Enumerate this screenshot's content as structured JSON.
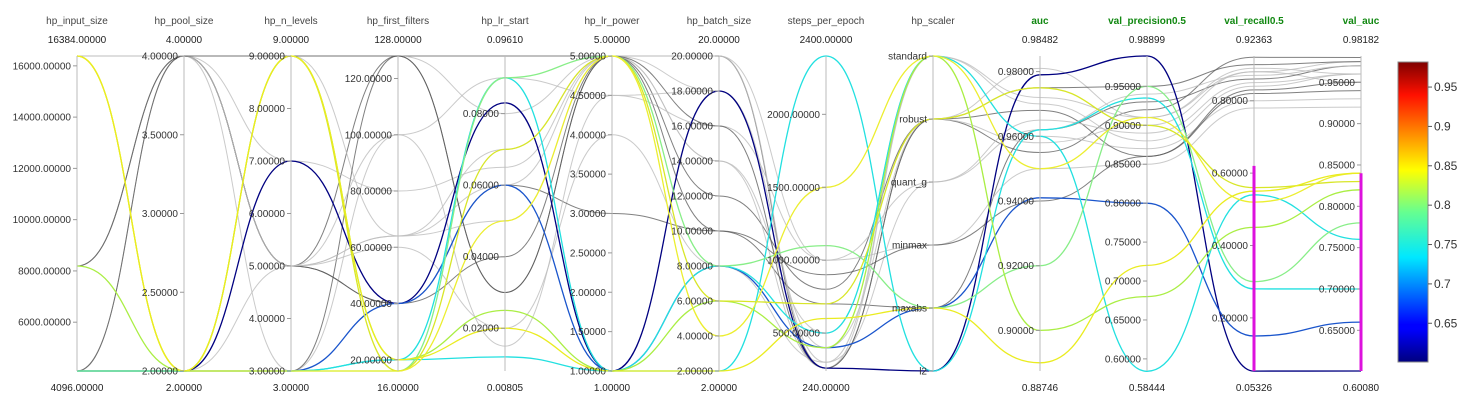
{
  "chart_data": {
    "type": "parallel_coordinates",
    "axes": [
      {
        "name": "hp_input_size",
        "metric": false,
        "kind": "num",
        "min": 4096,
        "max": 16384,
        "max_label": "16384.00000",
        "min_label": "4096.00000",
        "ticks": [
          {
            "v": 6000,
            "t": "6000.00000"
          },
          {
            "v": 8000,
            "t": "8000.00000"
          },
          {
            "v": 10000,
            "t": "10000.00000"
          },
          {
            "v": 12000,
            "t": "12000.00000"
          },
          {
            "v": 14000,
            "t": "14000.00000"
          },
          {
            "v": 16000,
            "t": "16000.00000"
          }
        ]
      },
      {
        "name": "hp_pool_size",
        "metric": false,
        "kind": "num",
        "min": 2,
        "max": 4,
        "max_label": "4.00000",
        "min_label": "2.00000",
        "ticks": [
          {
            "v": 2.0,
            "t": "2.00000"
          },
          {
            "v": 2.5,
            "t": "2.50000"
          },
          {
            "v": 3.0,
            "t": "3.00000"
          },
          {
            "v": 3.5,
            "t": "3.50000"
          },
          {
            "v": 4.0,
            "t": "4.00000"
          }
        ]
      },
      {
        "name": "hp_n_levels",
        "metric": false,
        "kind": "num",
        "min": 3,
        "max": 9,
        "max_label": "9.00000",
        "min_label": "3.00000",
        "ticks": [
          {
            "v": 3,
            "t": "3.00000"
          },
          {
            "v": 4,
            "t": "4.00000"
          },
          {
            "v": 5,
            "t": "5.00000"
          },
          {
            "v": 6,
            "t": "6.00000"
          },
          {
            "v": 7,
            "t": "7.00000"
          },
          {
            "v": 8,
            "t": "8.00000"
          },
          {
            "v": 9,
            "t": "9.00000"
          }
        ]
      },
      {
        "name": "hp_first_filters",
        "metric": false,
        "kind": "num",
        "min": 16,
        "max": 128,
        "max_label": "128.00000",
        "min_label": "16.00000",
        "ticks": [
          {
            "v": 20,
            "t": "20.00000"
          },
          {
            "v": 40,
            "t": "40.00000"
          },
          {
            "v": 60,
            "t": "60.00000"
          },
          {
            "v": 80,
            "t": "80.00000"
          },
          {
            "v": 100,
            "t": "100.00000"
          },
          {
            "v": 120,
            "t": "120.00000"
          }
        ]
      },
      {
        "name": "hp_lr_start",
        "metric": false,
        "kind": "num",
        "min": 0.00805,
        "max": 0.0961,
        "max_label": "0.09610",
        "min_label": "0.00805",
        "ticks": [
          {
            "v": 0.02,
            "t": "0.02000"
          },
          {
            "v": 0.04,
            "t": "0.04000"
          },
          {
            "v": 0.06,
            "t": "0.06000"
          },
          {
            "v": 0.08,
            "t": "0.08000"
          }
        ]
      },
      {
        "name": "hp_lr_power",
        "metric": false,
        "kind": "num",
        "min": 1,
        "max": 5,
        "max_label": "5.00000",
        "min_label": "1.00000",
        "ticks": [
          {
            "v": 1.0,
            "t": "1.00000"
          },
          {
            "v": 1.5,
            "t": "1.50000"
          },
          {
            "v": 2.0,
            "t": "2.00000"
          },
          {
            "v": 2.5,
            "t": "2.50000"
          },
          {
            "v": 3.0,
            "t": "3.00000"
          },
          {
            "v": 3.5,
            "t": "3.50000"
          },
          {
            "v": 4.0,
            "t": "4.00000"
          },
          {
            "v": 4.5,
            "t": "4.50000"
          },
          {
            "v": 5.0,
            "t": "5.00000"
          }
        ]
      },
      {
        "name": "hp_batch_size",
        "metric": false,
        "kind": "num",
        "min": 2,
        "max": 20,
        "max_label": "20.00000",
        "min_label": "2.00000",
        "ticks": [
          {
            "v": 2,
            "t": "2.00000"
          },
          {
            "v": 4,
            "t": "4.00000"
          },
          {
            "v": 6,
            "t": "6.00000"
          },
          {
            "v": 8,
            "t": "8.00000"
          },
          {
            "v": 10,
            "t": "10.00000"
          },
          {
            "v": 12,
            "t": "12.00000"
          },
          {
            "v": 14,
            "t": "14.00000"
          },
          {
            "v": 16,
            "t": "16.00000"
          },
          {
            "v": 18,
            "t": "18.00000"
          },
          {
            "v": 20,
            "t": "20.00000"
          }
        ]
      },
      {
        "name": "steps_per_epoch",
        "metric": false,
        "kind": "num",
        "min": 240,
        "max": 2400,
        "max_label": "2400.00000",
        "min_label": "240.00000",
        "ticks": [
          {
            "v": 500,
            "t": "500.00000"
          },
          {
            "v": 1000,
            "t": "1000.00000"
          },
          {
            "v": 1500,
            "t": "1500.00000"
          },
          {
            "v": 2000,
            "t": "2000.00000"
          }
        ]
      },
      {
        "name": "hp_scaler",
        "metric": false,
        "kind": "cat",
        "max_label": "",
        "min_label": "",
        "categories": [
          "l2",
          "maxabs",
          "minmax",
          "quant_g",
          "robust",
          "standard"
        ]
      },
      {
        "name": "auc",
        "metric": true,
        "kind": "num",
        "min": 0.88746,
        "max": 0.98482,
        "max_label": "0.98482",
        "min_label": "0.88746",
        "ticks": [
          {
            "v": 0.9,
            "t": "0.90000"
          },
          {
            "v": 0.92,
            "t": "0.92000"
          },
          {
            "v": 0.94,
            "t": "0.94000"
          },
          {
            "v": 0.96,
            "t": "0.96000"
          },
          {
            "v": 0.98,
            "t": "0.98000"
          }
        ]
      },
      {
        "name": "val_precision0.5",
        "metric": true,
        "kind": "num",
        "min": 0.58444,
        "max": 0.98899,
        "max_label": "0.98899",
        "min_label": "0.58444",
        "ticks": [
          {
            "v": 0.6,
            "t": "0.60000"
          },
          {
            "v": 0.65,
            "t": "0.65000"
          },
          {
            "v": 0.7,
            "t": "0.70000"
          },
          {
            "v": 0.75,
            "t": "0.75000"
          },
          {
            "v": 0.8,
            "t": "0.80000"
          },
          {
            "v": 0.85,
            "t": "0.85000"
          },
          {
            "v": 0.9,
            "t": "0.90000"
          },
          {
            "v": 0.95,
            "t": "0.95000"
          }
        ]
      },
      {
        "name": "val_recall0.5",
        "metric": true,
        "kind": "num",
        "min": 0.05326,
        "max": 0.92363,
        "max_label": "0.92363",
        "min_label": "0.05326",
        "ticks": [
          {
            "v": 0.2,
            "t": "0.20000"
          },
          {
            "v": 0.4,
            "t": "0.40000"
          },
          {
            "v": 0.6,
            "t": "0.60000"
          },
          {
            "v": 0.8,
            "t": "0.80000"
          }
        ]
      },
      {
        "name": "val_auc",
        "metric": true,
        "kind": "num",
        "min": 0.6008,
        "max": 0.98182,
        "max_label": "0.98182",
        "min_label": "0.60080",
        "ticks": [
          {
            "v": 0.65,
            "t": "0.65000"
          },
          {
            "v": 0.7,
            "t": "0.70000"
          },
          {
            "v": 0.75,
            "t": "0.75000"
          },
          {
            "v": 0.8,
            "t": "0.80000"
          },
          {
            "v": 0.85,
            "t": "0.85000"
          },
          {
            "v": 0.9,
            "t": "0.90000"
          },
          {
            "v": 0.95,
            "t": "0.95000"
          }
        ]
      }
    ],
    "brushes": [
      {
        "axis": "val_recall0.5",
        "from": 0.053,
        "to": 0.62,
        "color": "#dd11dd"
      },
      {
        "axis": "val_auc",
        "from": 0.6008,
        "to": 0.84,
        "color": "#dd11dd"
      }
    ],
    "colorbar": {
      "metric": "val_auc",
      "min": 0.6008,
      "max": 0.98182,
      "ticks": [
        {
          "v": 0.65,
          "t": "0.65"
        },
        {
          "v": 0.7,
          "t": "0.7"
        },
        {
          "v": 0.75,
          "t": "0.75"
        },
        {
          "v": 0.8,
          "t": "0.8"
        },
        {
          "v": 0.85,
          "t": "0.85"
        },
        {
          "v": 0.9,
          "t": "0.9"
        },
        {
          "v": 0.95,
          "t": "0.95"
        }
      ],
      "colormap": "jet"
    },
    "highlighted_runs": [
      {
        "color": "#000080",
        "values": [
          4096,
          2.0,
          7,
          40,
          0.083,
          1.0,
          18,
          260,
          "l2",
          0.979,
          0.989,
          0.053,
          0.6008
        ]
      },
      {
        "color": "#1a55cc",
        "values": [
          4096,
          2.0,
          3,
          40,
          0.06,
          1.0,
          8,
          400,
          "maxabs",
          0.941,
          0.8,
          0.15,
          0.66
        ]
      },
      {
        "color": "#22e0e0",
        "values": [
          4096,
          2.0,
          3,
          20,
          0.09,
          1.0,
          2,
          2400,
          "l2",
          0.962,
          0.935,
          0.28,
          0.7
        ]
      },
      {
        "color": "#22e0e0",
        "values": [
          4096,
          2.0,
          3,
          20,
          0.012,
          1.0,
          8,
          500,
          "standard",
          0.96,
          0.584,
          0.54,
          0.76
        ]
      },
      {
        "color": "#88ee88",
        "values": [
          4096,
          2.0,
          3,
          16,
          0.09,
          5.0,
          8,
          1100,
          "maxabs",
          0.92,
          0.95,
          0.3,
          0.78
        ]
      },
      {
        "color": "#aaee44",
        "values": [
          8192,
          2.0,
          9,
          20,
          0.025,
          1.0,
          6,
          400,
          "standard",
          0.9,
          0.68,
          0.45,
          0.82
        ]
      },
      {
        "color": "#d8e628",
        "values": [
          16384,
          2.0,
          9,
          16,
          0.07,
          5.0,
          6,
          700,
          "robust",
          0.975,
          0.9,
          0.56,
          0.83
        ]
      },
      {
        "color": "#ecee30",
        "values": [
          16384,
          2.0,
          3,
          16,
          0.05,
          5.0,
          4,
          1500,
          "standard",
          0.95,
          0.91,
          0.52,
          0.84
        ]
      },
      {
        "color": "#eaec20",
        "values": [
          16384,
          2.0,
          9,
          20,
          0.02,
          1.0,
          2,
          600,
          "maxabs",
          0.89,
          0.72,
          0.55,
          0.84
        ]
      }
    ],
    "background_runs": [
      [
        16384,
        4.0,
        5,
        128,
        0.0961,
        5.0,
        20,
        260,
        "robust",
        0.955,
        0.92,
        0.92,
        0.98
      ],
      [
        4096,
        4.0,
        5,
        64,
        0.05,
        5.0,
        14,
        500,
        "standard",
        0.97,
        0.88,
        0.84,
        0.96
      ],
      [
        4096,
        2.0,
        9,
        64,
        0.06,
        5.0,
        18,
        400,
        "robust",
        0.981,
        0.91,
        0.88,
        0.95
      ],
      [
        8192,
        4.0,
        5,
        40,
        0.04,
        5.0,
        10,
        700,
        "maxabs",
        0.962,
        0.93,
        0.86,
        0.97
      ],
      [
        16384,
        4.0,
        9,
        128,
        0.08,
        5.0,
        20,
        300,
        "standard",
        0.96,
        0.87,
        0.8,
        0.93
      ],
      [
        4096,
        4.0,
        3,
        100,
        0.09,
        4.5,
        16,
        1000,
        "minmax",
        0.95,
        0.85,
        0.78,
        0.92
      ],
      [
        4096,
        2.0,
        3,
        128,
        0.03,
        5.0,
        12,
        800,
        "robust",
        0.968,
        0.86,
        0.82,
        0.94
      ],
      [
        16384,
        4.0,
        5,
        60,
        0.02,
        4.0,
        8,
        300,
        "quant_g",
        0.965,
        0.89,
        0.85,
        0.96
      ],
      [
        8192,
        4.0,
        7,
        80,
        0.065,
        5.0,
        14,
        260,
        "robust",
        0.958,
        0.9,
        0.88,
        0.975
      ],
      [
        4096,
        4.0,
        5,
        40,
        0.06,
        3.0,
        10,
        900,
        "minmax",
        0.94,
        0.86,
        0.83,
        0.95
      ],
      [
        4096,
        2.0,
        5,
        64,
        0.07,
        5.0,
        20,
        1000,
        "quant_g",
        0.962,
        0.94,
        0.87,
        0.97
      ],
      [
        16384,
        4.0,
        5,
        100,
        0.015,
        4.5,
        18,
        260,
        "standard",
        0.972,
        0.91,
        0.89,
        0.96
      ],
      [
        8192,
        4.0,
        9,
        128,
        0.03,
        5.0,
        16,
        260,
        "robust",
        0.975,
        0.95,
        0.9,
        0.975
      ]
    ]
  }
}
